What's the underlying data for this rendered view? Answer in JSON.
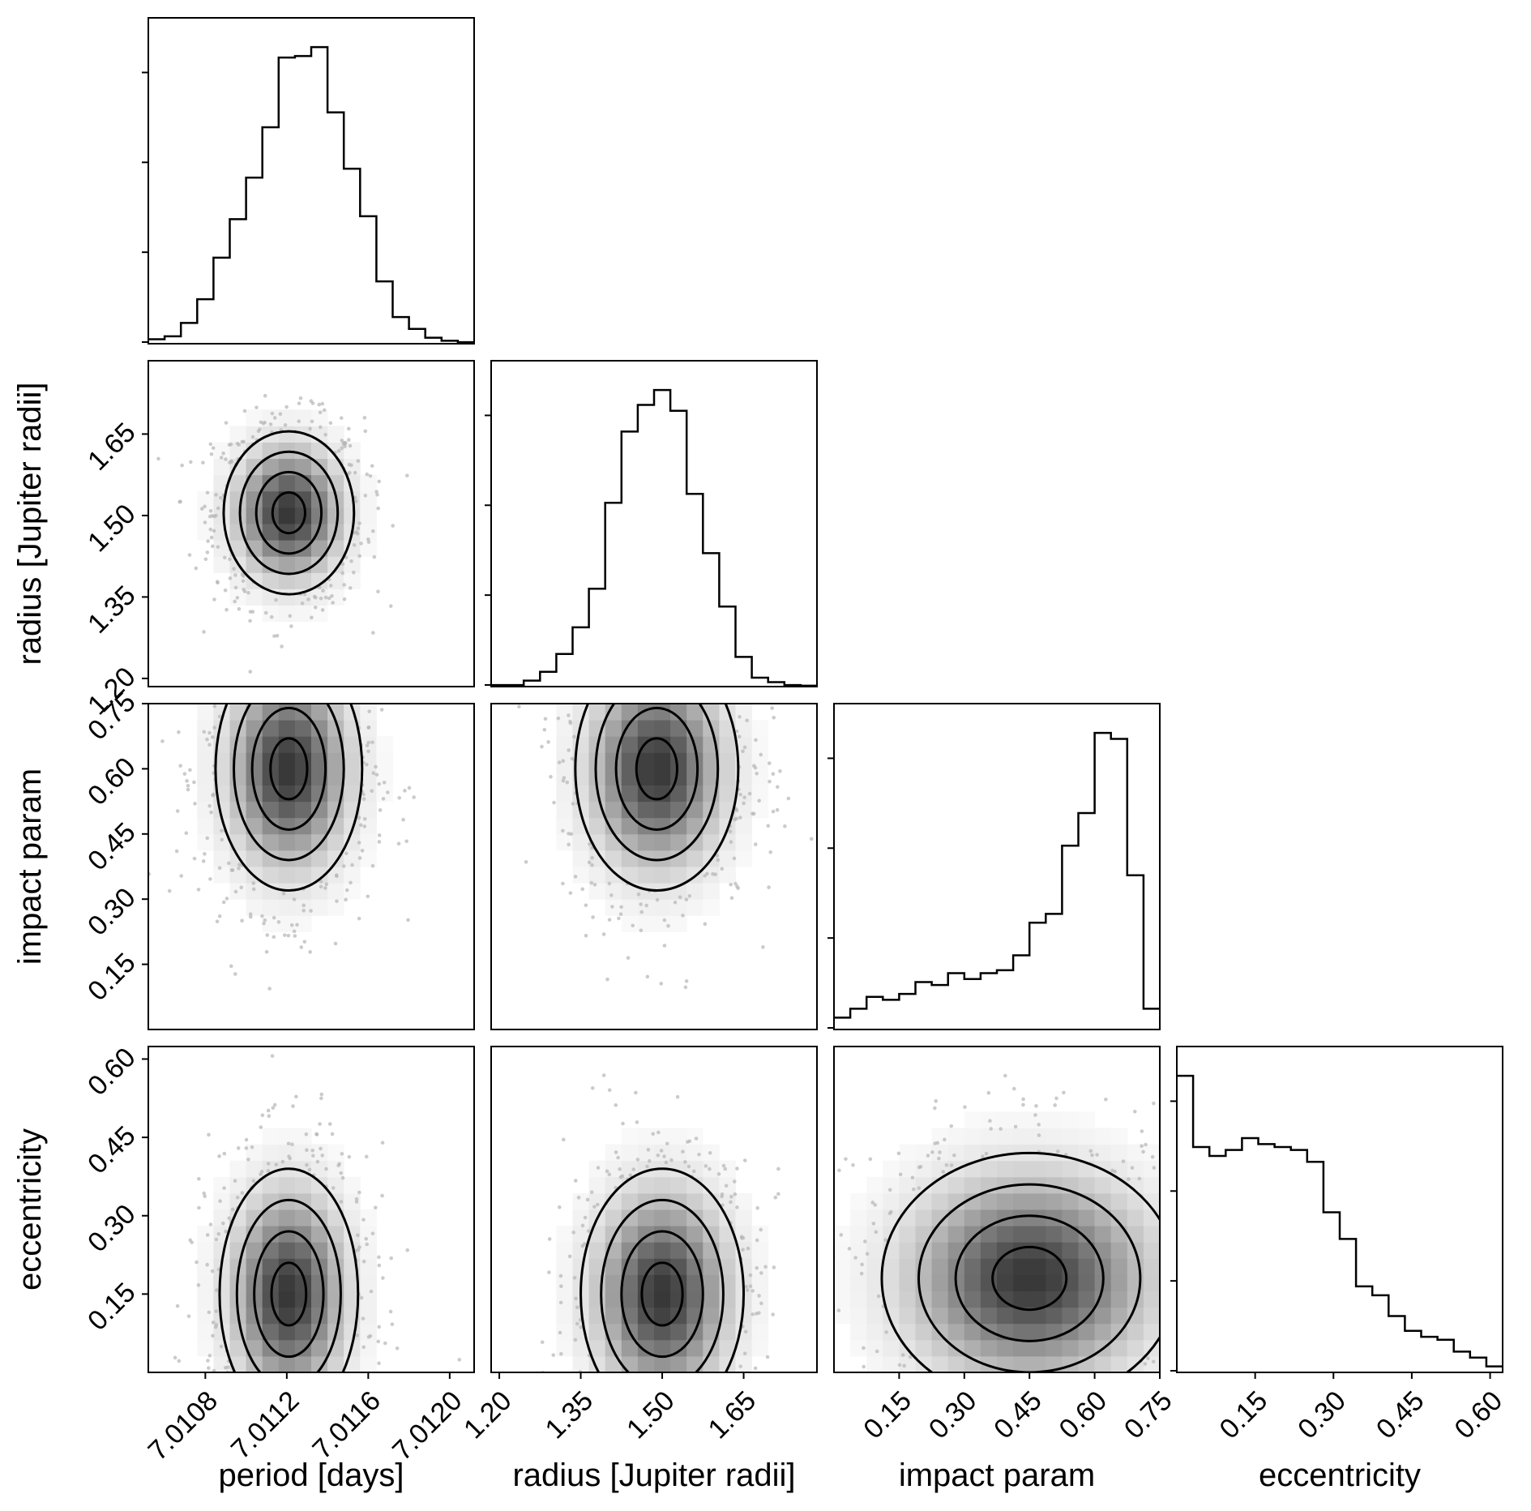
{
  "chart_data": {
    "type": "corner",
    "parameters": [
      {
        "key": "period",
        "label": "period [days]",
        "range": [
          7.01052,
          7.01212
        ],
        "ticks": [
          "7.0108",
          "7.0112",
          "7.0116",
          "7.0120"
        ]
      },
      {
        "key": "radius",
        "label": "radius [Jupiter radii]",
        "range": [
          1.185,
          1.785
        ],
        "ticks": [
          "1.20",
          "1.35",
          "1.50",
          "1.65"
        ]
      },
      {
        "key": "impact",
        "label": "impact param",
        "range": [
          0.0,
          0.75
        ],
        "ticks": [
          "0.15",
          "0.30",
          "0.45",
          "0.60",
          "0.75"
        ]
      },
      {
        "key": "eccentricity",
        "label": "eccentricity",
        "range": [
          0.0,
          0.624
        ],
        "ticks": [
          "0.15",
          "0.30",
          "0.45",
          "0.60"
        ]
      }
    ],
    "histograms": [
      {
        "param": "period",
        "bin_edges_start": 7.01052,
        "bin_width": 8e-05,
        "values": [
          0.015,
          0.025,
          0.07,
          0.15,
          0.29,
          0.42,
          0.56,
          0.73,
          0.965,
          0.97,
          1.0,
          0.78,
          0.59,
          0.43,
          0.21,
          0.09,
          0.05,
          0.02,
          0.01,
          0.005
        ]
      },
      {
        "param": "radius",
        "bin_edges_start": 1.185,
        "bin_width": 0.03,
        "values": [
          0.005,
          0.005,
          0.02,
          0.05,
          0.11,
          0.2,
          0.33,
          0.62,
          0.86,
          0.95,
          1.0,
          0.93,
          0.65,
          0.45,
          0.27,
          0.1,
          0.03,
          0.015,
          0.005,
          0.003
        ]
      },
      {
        "param": "impact",
        "bin_edges_start": 0.0,
        "bin_width": 0.0375,
        "values": [
          0.04,
          0.07,
          0.11,
          0.1,
          0.12,
          0.16,
          0.15,
          0.19,
          0.17,
          0.19,
          0.2,
          0.25,
          0.36,
          0.39,
          0.62,
          0.73,
          1.0,
          0.98,
          0.52,
          0.07
        ]
      },
      {
        "param": "eccentricity",
        "bin_edges_start": 0.0,
        "bin_width": 0.0312,
        "values": [
          1.0,
          0.76,
          0.73,
          0.75,
          0.79,
          0.77,
          0.76,
          0.75,
          0.71,
          0.54,
          0.45,
          0.29,
          0.26,
          0.19,
          0.14,
          0.12,
          0.11,
          0.07,
          0.05,
          0.02
        ]
      }
    ],
    "joint": [
      {
        "x": "period",
        "y": "radius",
        "x_mean": 7.01121,
        "x_sd": 0.00016,
        "y_mean": 1.505,
        "y_sd": 0.075
      },
      {
        "x": "period",
        "y": "impact",
        "x_mean": 7.01121,
        "x_sd": 0.00018,
        "y_mean": 0.6,
        "y_sd": 0.14
      },
      {
        "x": "radius",
        "y": "impact",
        "x_mean": 1.49,
        "x_sd": 0.075,
        "y_mean": 0.6,
        "y_sd": 0.14
      },
      {
        "x": "period",
        "y": "eccentricity",
        "x_mean": 7.01121,
        "x_sd": 0.00017,
        "y_mean": 0.15,
        "y_sd": 0.12
      },
      {
        "x": "radius",
        "y": "eccentricity",
        "x_mean": 1.5,
        "x_sd": 0.075,
        "y_mean": 0.15,
        "y_sd": 0.12
      },
      {
        "x": "impact",
        "y": "eccentricity",
        "x_mean": 0.45,
        "x_sd": 0.17,
        "y_mean": 0.18,
        "y_sd": 0.12
      }
    ],
    "colors": {
      "ink": "#000000",
      "scatter": "#b5b5b5"
    }
  }
}
